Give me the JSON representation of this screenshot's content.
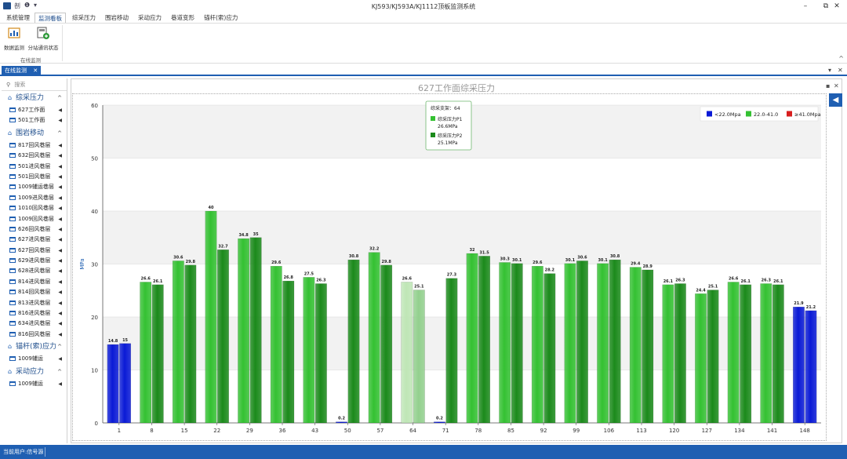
{
  "window": {
    "title": "KJ593/KJ593A/KJ1112顶板监测系统",
    "minimize": "–",
    "restore": "⧉",
    "close": "✕"
  },
  "quick_access": {
    "item1": "㓢",
    "item2": "❶",
    "item3": "▾"
  },
  "menu": [
    "系统管理",
    "监测看板",
    "综采压力",
    "围岩移动",
    "采动应力",
    "巷道变形",
    "锚杆(索)应力"
  ],
  "ribbon": {
    "buttons": [
      "数据监测",
      "分站通讯状态"
    ],
    "group_label": "在线监测",
    "collapse": "^"
  },
  "doc_tab": {
    "label": "在线监测",
    "close": "✕",
    "ctrl_down": "▾",
    "ctrl_close": "✕"
  },
  "sidebar": {
    "search_placeholder": "搜索",
    "search_icon": "search-icon",
    "groups": [
      {
        "label": "综采压力",
        "items": [
          "627工作面",
          "501工作面"
        ]
      },
      {
        "label": "围岩移动",
        "items": [
          "817回风巷层",
          "632回风巷层",
          "501进风巷层",
          "501回风巷层",
          "1009辅运巷层",
          "1009进风巷层",
          "1010回风巷层",
          "1009回风巷层",
          "626回风巷层",
          "627进风巷层",
          "627回风巷层",
          "629进风巷层",
          "628进风巷层",
          "814进风巷层",
          "814回风巷层",
          "813进风巷层",
          "816进风巷层",
          "634进风巷层",
          "816回风巷层"
        ]
      },
      {
        "label": "锚杆(索)应力",
        "items": [
          "1009辅运"
        ]
      },
      {
        "label": "采动应力",
        "items": [
          "1009辅运"
        ]
      }
    ]
  },
  "panel": {
    "title": "627工作面综采压力",
    "pin": "▪",
    "close": "✕",
    "nav": "◀"
  },
  "tooltip": {
    "header": "综采支架：64",
    "p1_name": "综采压力P1",
    "p1_value": "26.6MPa",
    "p2_name": "综采压力P2",
    "p2_value": "25.1MPa"
  },
  "colors": {
    "low": "#0a1ad6",
    "mid_p1": "#34c132",
    "mid_p2": "#1b8a1b",
    "high": "#d81e1e",
    "highlight_p1": "#bfe6b6",
    "highlight_p2": "#93d08e",
    "accent": "#1f5fb2"
  },
  "status": {
    "text": "当前用户:信号源"
  },
  "chart_data": {
    "type": "bar",
    "title": "627工作面综采压力",
    "ylabel": "MPa",
    "xlabel": "",
    "ylim": [
      0,
      60
    ],
    "yticks": [
      0,
      10,
      20,
      30,
      40,
      50,
      60
    ],
    "grid": true,
    "legend_position": "top-right",
    "legend": [
      {
        "label": "<22.0Mpa",
        "color": "#0a1ad6"
      },
      {
        "label": "22.0-41.0",
        "color": "#34c132"
      },
      {
        "label": "≥41.0Mpa",
        "color": "#d81e1e"
      }
    ],
    "categories": [
      "1",
      "8",
      "15",
      "22",
      "29",
      "36",
      "43",
      "50",
      "57",
      "64",
      "71",
      "78",
      "85",
      "92",
      "99",
      "106",
      "113",
      "120",
      "127",
      "134",
      "141",
      "148"
    ],
    "highlighted": "64",
    "series": [
      {
        "name": "综采压力P1",
        "values": [
          14.8,
          26.6,
          30.6,
          40,
          34.8,
          29.6,
          27.5,
          0.2,
          32.2,
          26.6,
          0.2,
          32,
          30.3,
          29.6,
          30.1,
          30.1,
          29.4,
          26.1,
          24.4,
          26.6,
          26.3,
          21.9
        ]
      },
      {
        "name": "综采压力P2",
        "values": [
          15,
          26.1,
          29.8,
          32.7,
          35,
          26.8,
          26.3,
          30.8,
          29.8,
          25.1,
          27.3,
          31.5,
          30.1,
          28.2,
          30.6,
          30.8,
          28.9,
          26.3,
          25.1,
          26.1,
          26.1,
          21.2
        ]
      }
    ],
    "bar_labels": [
      [
        "14.8",
        "15"
      ],
      [
        "26.6",
        "26.1"
      ],
      [
        "30.6",
        "29.8"
      ],
      [
        "40",
        "32.7"
      ],
      [
        "34.8",
        "35"
      ],
      [
        "29.6",
        "26.8"
      ],
      [
        "27.5",
        "26.3"
      ],
      [
        "0.2",
        "30.8"
      ],
      [
        "32.2",
        "29.8"
      ],
      [
        "26.6",
        "25.1"
      ],
      [
        "0.2",
        "27.3"
      ],
      [
        "32",
        "31.5"
      ],
      [
        "30.3",
        "30.1"
      ],
      [
        "29.6",
        "28.2"
      ],
      [
        "30.1",
        "30.6"
      ],
      [
        "30.1",
        "30.8"
      ],
      [
        "29.4",
        "28.9"
      ],
      [
        "26.1",
        "26.3"
      ],
      [
        "24.4",
        "25.1"
      ],
      [
        "26.6",
        "26.1"
      ],
      [
        "26.3",
        "26.1"
      ],
      [
        "21.9",
        "21.2"
      ]
    ]
  }
}
